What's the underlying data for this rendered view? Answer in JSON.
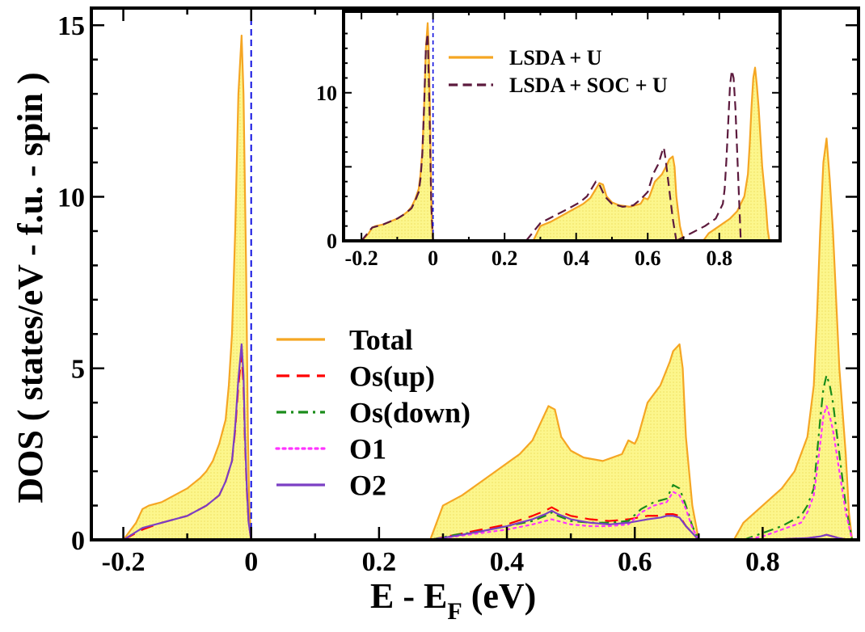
{
  "chart_data": [
    {
      "type": "line",
      "role": "main",
      "xlabel": "E - E",
      "xlabel_sub": "F",
      "xlabel_unit": " (eV)",
      "ylabel": "DOS ( states/eV - f.u. - spin )",
      "xlim": [
        -0.25,
        0.95
      ],
      "ylim": [
        0,
        15.5
      ],
      "xticks": [
        -0.2,
        0,
        0.2,
        0.4,
        0.6,
        0.8
      ],
      "xtick_labels": [
        "-0.2",
        "0",
        "0.2",
        "0.4",
        "0.6",
        "0.8"
      ],
      "yticks": [
        0,
        5,
        10,
        15
      ],
      "ytick_labels": [
        "0",
        "5",
        "10",
        "15"
      ],
      "fermi_level": 0,
      "legend_position": "center",
      "series": [
        {
          "name": "Total",
          "color": "#f5a623",
          "fill": "#fbf38a",
          "style": "solid",
          "x": [
            -0.2,
            -0.18,
            -0.17,
            -0.16,
            -0.14,
            -0.12,
            -0.1,
            -0.08,
            -0.07,
            -0.06,
            -0.05,
            -0.04,
            -0.035,
            -0.03,
            -0.025,
            -0.02,
            -0.015,
            -0.012,
            -0.008,
            -0.005,
            -0.003,
            0.0
          ],
          "y": [
            0,
            0.5,
            0.9,
            1.0,
            1.1,
            1.3,
            1.5,
            1.8,
            2.0,
            2.3,
            2.8,
            3.5,
            4.5,
            6.0,
            9.0,
            13.0,
            14.7,
            13.0,
            8.0,
            3.0,
            1.0,
            0
          ],
          "x2": [
            0.28,
            0.3,
            0.33,
            0.36,
            0.39,
            0.42,
            0.44,
            0.455,
            0.465,
            0.475,
            0.485,
            0.5,
            0.52,
            0.55,
            0.58,
            0.59,
            0.6,
            0.605,
            0.62,
            0.64,
            0.655,
            0.66,
            0.67,
            0.675,
            0.68,
            0.69,
            0.7
          ],
          "y2": [
            0,
            1.0,
            1.3,
            1.7,
            2.1,
            2.5,
            2.9,
            3.5,
            3.9,
            3.8,
            3.0,
            2.6,
            2.4,
            2.3,
            2.5,
            2.9,
            2.8,
            3.0,
            4.0,
            4.5,
            5.2,
            5.5,
            5.7,
            5.0,
            3.0,
            1.0,
            0
          ],
          "x3": [
            0.755,
            0.77,
            0.8,
            0.83,
            0.85,
            0.87,
            0.88,
            0.885,
            0.89,
            0.895,
            0.9,
            0.905,
            0.91,
            0.92,
            0.93,
            0.935,
            0.94
          ],
          "y3": [
            0,
            0.5,
            1.0,
            1.5,
            2.0,
            3.0,
            4.5,
            6.5,
            9.0,
            11.0,
            11.7,
            10.5,
            9.0,
            5.0,
            2.5,
            0.8,
            0
          ]
        },
        {
          "name": "Os(up)",
          "color": "#ff0000",
          "style": "dashed",
          "x": [
            -0.2,
            -0.17,
            -0.14,
            -0.1,
            -0.07,
            -0.05,
            -0.04,
            -0.03,
            -0.025,
            -0.02,
            -0.015,
            -0.012,
            -0.01,
            -0.007,
            -0.004,
            0.0
          ],
          "y": [
            0,
            0.3,
            0.5,
            0.7,
            1.0,
            1.3,
            1.7,
            2.3,
            3.2,
            4.5,
            5.4,
            4.5,
            3.0,
            1.5,
            0.5,
            0
          ],
          "x2": [
            0.28,
            0.32,
            0.36,
            0.4,
            0.44,
            0.46,
            0.47,
            0.48,
            0.5,
            0.53,
            0.56,
            0.59,
            0.62,
            0.64,
            0.65,
            0.66,
            0.67,
            0.68,
            0.7
          ],
          "y2": [
            0,
            0.15,
            0.3,
            0.45,
            0.7,
            0.85,
            0.95,
            0.85,
            0.7,
            0.6,
            0.55,
            0.6,
            0.7,
            0.7,
            0.75,
            0.75,
            0.7,
            0.4,
            0
          ],
          "x3": [
            0.77,
            0.83,
            0.87,
            0.89,
            0.9,
            0.91,
            0.92,
            0.93,
            0.94
          ],
          "y3": [
            0,
            0.02,
            0.05,
            0.1,
            0.15,
            0.1,
            0.05,
            0.02,
            0
          ]
        },
        {
          "name": "Os(down)",
          "color": "#1a8c1a",
          "style": "dashdot",
          "x": [
            -0.2,
            -0.1,
            -0.05,
            -0.02,
            0.0
          ],
          "y": [
            0,
            0.01,
            0.02,
            0.02,
            0
          ],
          "x2": [
            0.28,
            0.32,
            0.36,
            0.4,
            0.44,
            0.46,
            0.47,
            0.48,
            0.5,
            0.53,
            0.56,
            0.59,
            0.61,
            0.63,
            0.65,
            0.66,
            0.67,
            0.68,
            0.69,
            0.7
          ],
          "y2": [
            0,
            0.15,
            0.25,
            0.4,
            0.55,
            0.7,
            0.8,
            0.7,
            0.55,
            0.5,
            0.5,
            0.55,
            0.9,
            1.1,
            1.2,
            1.6,
            1.5,
            1.0,
            0.4,
            0
          ],
          "x3": [
            0.77,
            0.8,
            0.83,
            0.86,
            0.87,
            0.88,
            0.885,
            0.89,
            0.895,
            0.9,
            0.905,
            0.91,
            0.92,
            0.93,
            0.94
          ],
          "y3": [
            0,
            0.2,
            0.4,
            0.7,
            1.0,
            1.5,
            2.5,
            3.5,
            4.4,
            4.8,
            4.5,
            4.0,
            2.5,
            1.0,
            0
          ]
        },
        {
          "name": "O1",
          "color": "#ff33ff",
          "style": "dotted",
          "x": [
            -0.2,
            -0.1,
            -0.05,
            -0.02,
            0.0
          ],
          "y": [
            0,
            0.01,
            0.02,
            0.02,
            0
          ],
          "x2": [
            0.28,
            0.32,
            0.36,
            0.4,
            0.44,
            0.46,
            0.47,
            0.48,
            0.5,
            0.53,
            0.56,
            0.59,
            0.61,
            0.63,
            0.65,
            0.66,
            0.67,
            0.68,
            0.69,
            0.7
          ],
          "y2": [
            0,
            0.1,
            0.2,
            0.3,
            0.45,
            0.55,
            0.6,
            0.55,
            0.45,
            0.4,
            0.4,
            0.45,
            0.8,
            1.0,
            1.1,
            1.4,
            1.3,
            0.9,
            0.35,
            0
          ],
          "x3": [
            0.77,
            0.8,
            0.83,
            0.86,
            0.87,
            0.88,
            0.885,
            0.89,
            0.895,
            0.9,
            0.905,
            0.91,
            0.92,
            0.93,
            0.94
          ],
          "y3": [
            0,
            0.1,
            0.3,
            0.5,
            0.8,
            1.3,
            2.0,
            2.8,
            3.6,
            3.9,
            3.6,
            3.2,
            2.0,
            0.8,
            0
          ]
        },
        {
          "name": "O2",
          "color": "#7b3fc4",
          "style": "solid",
          "x": [
            -0.2,
            -0.17,
            -0.14,
            -0.1,
            -0.07,
            -0.05,
            -0.04,
            -0.03,
            -0.025,
            -0.02,
            -0.015,
            -0.012,
            -0.01,
            -0.007,
            -0.004,
            0.0
          ],
          "y": [
            0,
            0.35,
            0.5,
            0.7,
            1.0,
            1.3,
            1.7,
            2.3,
            3.3,
            4.7,
            5.7,
            4.8,
            3.2,
            1.6,
            0.5,
            0
          ],
          "x2": [
            0.28,
            0.32,
            0.36,
            0.4,
            0.44,
            0.46,
            0.47,
            0.48,
            0.5,
            0.53,
            0.56,
            0.59,
            0.62,
            0.64,
            0.65,
            0.66,
            0.67,
            0.68,
            0.7
          ],
          "y2": [
            0,
            0.12,
            0.25,
            0.4,
            0.6,
            0.75,
            0.85,
            0.75,
            0.6,
            0.5,
            0.45,
            0.5,
            0.6,
            0.65,
            0.7,
            0.7,
            0.65,
            0.4,
            0
          ],
          "x3": [
            0.77,
            0.83,
            0.87,
            0.89,
            0.9,
            0.91,
            0.92,
            0.93,
            0.94
          ],
          "y3": [
            0,
            0.02,
            0.05,
            0.1,
            0.15,
            0.1,
            0.05,
            0.02,
            0
          ]
        }
      ]
    },
    {
      "type": "line",
      "role": "inset",
      "xlim": [
        -0.25,
        0.97
      ],
      "ylim": [
        0,
        15.5
      ],
      "xticks": [
        -0.2,
        0,
        0.2,
        0.4,
        0.6,
        0.8
      ],
      "xtick_labels": [
        "-0.2",
        "0",
        "0.2",
        "0.4",
        "0.6",
        "0.8"
      ],
      "yticks": [
        0,
        5,
        10
      ],
      "ytick_labels": [
        "0",
        "",
        "10"
      ],
      "fermi_level": 0,
      "legend_position": "top-right",
      "series": [
        {
          "name": "LSDA + U",
          "color": "#f5a623",
          "fill": "#fbf38a",
          "style": "solid",
          "x": [
            -0.2,
            -0.18,
            -0.17,
            -0.16,
            -0.14,
            -0.12,
            -0.1,
            -0.08,
            -0.07,
            -0.06,
            -0.05,
            -0.04,
            -0.035,
            -0.03,
            -0.025,
            -0.02,
            -0.015,
            -0.012,
            -0.008,
            -0.005,
            -0.003,
            0.0
          ],
          "y": [
            0,
            0.5,
            0.9,
            1.0,
            1.1,
            1.3,
            1.5,
            1.8,
            2.0,
            2.3,
            2.8,
            3.5,
            4.5,
            6.0,
            9.0,
            13.0,
            14.7,
            13.0,
            8.0,
            3.0,
            1.0,
            0
          ],
          "x2": [
            0.28,
            0.3,
            0.33,
            0.36,
            0.39,
            0.42,
            0.44,
            0.455,
            0.465,
            0.475,
            0.485,
            0.5,
            0.52,
            0.55,
            0.58,
            0.59,
            0.6,
            0.605,
            0.62,
            0.64,
            0.655,
            0.66,
            0.67,
            0.675,
            0.68,
            0.69,
            0.7
          ],
          "y2": [
            0,
            1.0,
            1.3,
            1.7,
            2.1,
            2.5,
            2.9,
            3.5,
            3.9,
            3.8,
            3.0,
            2.6,
            2.4,
            2.3,
            2.5,
            2.9,
            2.8,
            3.0,
            4.0,
            4.5,
            5.2,
            5.5,
            5.7,
            5.0,
            3.0,
            1.0,
            0
          ],
          "x3": [
            0.755,
            0.77,
            0.8,
            0.83,
            0.85,
            0.87,
            0.88,
            0.885,
            0.89,
            0.895,
            0.9,
            0.905,
            0.91,
            0.92,
            0.93,
            0.935,
            0.94
          ],
          "y3": [
            0,
            0.5,
            1.0,
            1.5,
            2.0,
            3.0,
            4.5,
            6.5,
            9.0,
            11.0,
            11.7,
            10.5,
            9.0,
            5.0,
            2.5,
            0.8,
            0
          ]
        },
        {
          "name": "LSDA + SOC + U",
          "color": "#5c1a3d",
          "style": "dashed",
          "x": [
            -0.2,
            -0.17,
            -0.14,
            -0.1,
            -0.08,
            -0.06,
            -0.05,
            -0.04,
            -0.035,
            -0.03,
            -0.025,
            -0.02,
            -0.015,
            -0.01,
            -0.005,
            0.0
          ],
          "y": [
            0,
            0.9,
            1.1,
            1.5,
            1.8,
            2.2,
            2.7,
            3.3,
            4.2,
            5.8,
            9.0,
            13.0,
            14.0,
            9.0,
            2.5,
            0
          ],
          "x2": [
            0.26,
            0.3,
            0.34,
            0.38,
            0.41,
            0.43,
            0.445,
            0.455,
            0.465,
            0.48,
            0.5,
            0.53,
            0.56,
            0.58,
            0.6,
            0.615,
            0.63,
            0.64,
            0.645,
            0.65,
            0.66,
            0.67,
            0.68
          ],
          "y2": [
            0,
            1.2,
            1.7,
            2.2,
            2.6,
            3.0,
            3.6,
            4.0,
            3.8,
            3.0,
            2.5,
            2.3,
            2.4,
            2.8,
            3.3,
            4.5,
            5.2,
            6.0,
            6.3,
            5.5,
            3.5,
            1.5,
            0
          ],
          "x3": [
            0.68,
            0.72,
            0.76,
            0.79,
            0.81,
            0.815,
            0.82,
            0.825,
            0.83,
            0.835,
            0.84,
            0.845,
            0.85,
            0.855,
            0.86
          ],
          "y3": [
            0,
            0.5,
            1.0,
            1.5,
            2.5,
            3.5,
            5.5,
            8.0,
            10.5,
            11.5,
            11.0,
            9.0,
            6.0,
            3.0,
            0
          ]
        }
      ]
    }
  ]
}
